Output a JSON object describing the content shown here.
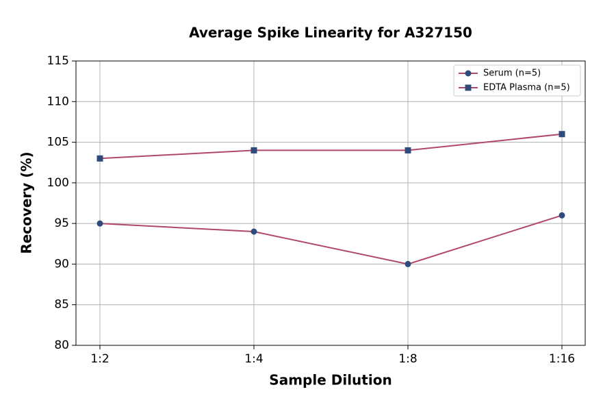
{
  "chart_data": {
    "type": "line",
    "title": "Average Spike Linearity for A327150",
    "x_label": "Sample Dilution",
    "y_label": "Recovery (%)",
    "categories": [
      "1:2",
      "1:4",
      "1:8",
      "1:16"
    ],
    "series": [
      {
        "name": "Serum (n=5)",
        "color": "#b0476b",
        "marker_color": "#2f4b7c",
        "marker": "circle",
        "values": [
          95,
          94,
          90,
          96
        ]
      },
      {
        "name": "EDTA Plasma (n=5)",
        "color": "#b0476b",
        "marker_color": "#2f4b7c",
        "marker": "square",
        "values": [
          103,
          104,
          104,
          106
        ]
      }
    ],
    "ylim": [
      80,
      115
    ],
    "yticks": [
      80,
      85,
      90,
      95,
      100,
      105,
      110,
      115
    ],
    "grid": true,
    "legend": "upper right"
  }
}
